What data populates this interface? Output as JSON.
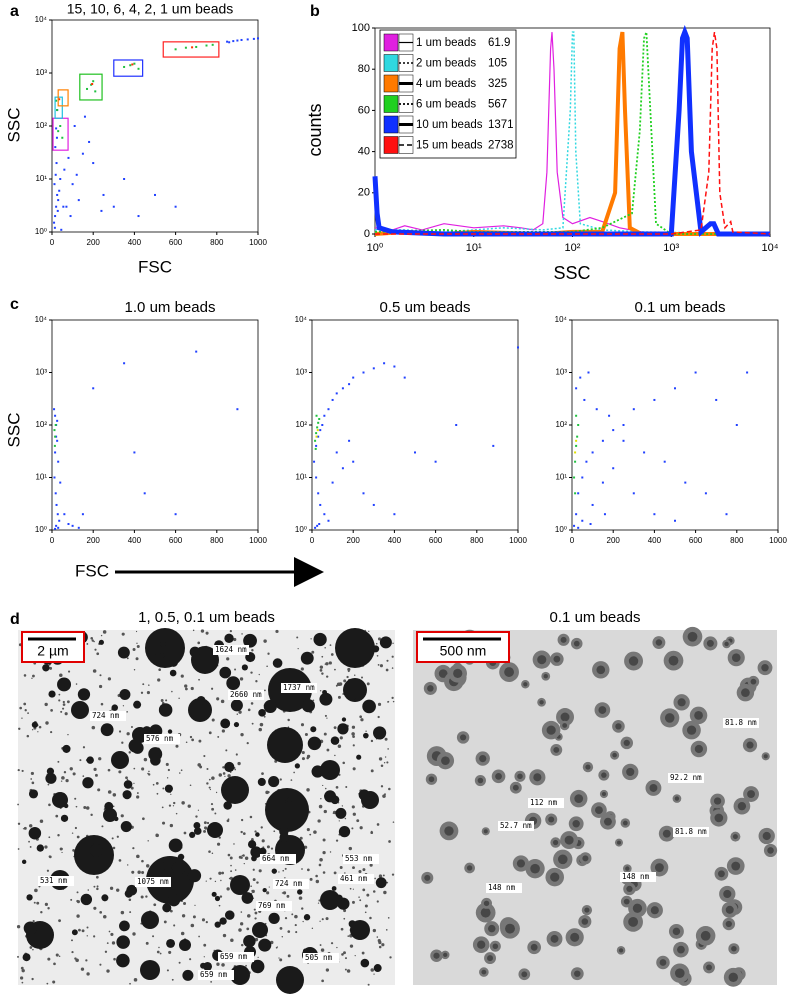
{
  "panel_labels": [
    "a",
    "b",
    "c",
    "d"
  ],
  "chart_data": [
    {
      "type": "scatter",
      "title": "15, 10, 6, 4, 2, 1 um beads",
      "x_label": "FSC",
      "y_label": "SSC",
      "xlim": [
        0,
        1000
      ],
      "xticks": [
        0,
        200,
        400,
        600,
        800,
        1000
      ],
      "ylim": [
        1,
        10000
      ],
      "yscale": "log",
      "yticks": [
        {
          "value": 1,
          "label": "10⁰"
        },
        {
          "value": 10,
          "label": "10¹"
        },
        {
          "value": 100,
          "label": "10²"
        },
        {
          "value": 1000,
          "label": "10³"
        },
        {
          "value": 10000,
          "label": "10⁴"
        }
      ],
      "series": [
        {
          "color": "#2040ff",
          "x": [
            10,
            15,
            20,
            25,
            12,
            18,
            30,
            22,
            14,
            28,
            35,
            40,
            16,
            24,
            60,
            80,
            100,
            120,
            150,
            200,
            250,
            300,
            350,
            180,
            130,
            90,
            70,
            110,
            160,
            240,
            420,
            500,
            600,
            850,
            880,
            900,
            920,
            950,
            980,
            1000,
            860,
            45,
            55,
            25,
            20
          ],
          "y": [
            1.5,
            2,
            3,
            5,
            8,
            12,
            4,
            20,
            1.2,
            2.5,
            6,
            10,
            40,
            60,
            15,
            25,
            8,
            12,
            30,
            20,
            5,
            3,
            10,
            50,
            4,
            2,
            3,
            100,
            150,
            2.5,
            2,
            5,
            3,
            3900,
            4000,
            4100,
            4200,
            4300,
            4400,
            4500,
            3800,
            1.1,
            3,
            200,
            90
          ]
        },
        {
          "color": "#20c040",
          "x": [
            30,
            40,
            50,
            170,
            190,
            200,
            210,
            350,
            380,
            400,
            420,
            600,
            650,
            700,
            750,
            780,
            20,
            25
          ],
          "y": [
            80,
            100,
            60,
            500,
            600,
            700,
            450,
            1300,
            1400,
            1500,
            1200,
            2800,
            3000,
            3100,
            3300,
            3400,
            300,
            200
          ]
        },
        {
          "color": "#ff3000",
          "x": [
            195,
            390,
            680,
            35
          ],
          "y": [
            620,
            1450,
            3050,
            320
          ]
        }
      ],
      "gates": [
        {
          "color": "#e020e0",
          "x": [
            5,
            78
          ],
          "y": [
            35,
            140
          ]
        },
        {
          "color": "#20c0e0",
          "x": [
            15,
            50
          ],
          "y": [
            140,
            350
          ]
        },
        {
          "color": "#ff8000",
          "x": [
            30,
            78
          ],
          "y": [
            240,
            480
          ]
        },
        {
          "color": "#20c020",
          "x": [
            135,
            243
          ],
          "y": [
            310,
            950
          ]
        },
        {
          "color": "#2030ff",
          "x": [
            300,
            440
          ],
          "y": [
            870,
            1760
          ]
        },
        {
          "color": "#ff2020",
          "x": [
            540,
            810
          ],
          "y": [
            2000,
            3870
          ]
        }
      ]
    },
    {
      "type": "line",
      "x_label": "SSC",
      "y_label": "counts",
      "xlim": [
        1,
        10000
      ],
      "xscale": "log",
      "xticks": [
        {
          "value": 1,
          "label": "10⁰"
        },
        {
          "value": 10,
          "label": "10¹"
        },
        {
          "value": 100,
          "label": "10²"
        },
        {
          "value": 1000,
          "label": "10³"
        },
        {
          "value": 10000,
          "label": "10⁴"
        }
      ],
      "ylim": [
        0,
        100
      ],
      "yticks": [
        0,
        20,
        40,
        60,
        80,
        100
      ],
      "legend": "upper-left",
      "series": [
        {
          "name": "1 um beads",
          "legend_value": 61.9,
          "color": "#e020e0",
          "linestyle": "solid",
          "linewidth": 1.2,
          "x": [
            1,
            1.5,
            2,
            3,
            5,
            10,
            20,
            30,
            40,
            50,
            55,
            60,
            62,
            65,
            70,
            80,
            100,
            150,
            200,
            300,
            500,
            1000,
            10000
          ],
          "y": [
            3,
            2,
            4,
            2,
            5,
            3,
            4,
            3,
            2,
            5,
            30,
            90,
            98,
            80,
            30,
            8,
            5,
            8,
            6,
            3,
            1,
            0,
            0
          ]
        },
        {
          "name": "2 um beads",
          "legend_value": 105,
          "color": "#30d8e0",
          "linestyle": "dotted",
          "linewidth": 1.5,
          "x": [
            1,
            2,
            5,
            10,
            20,
            50,
            80,
            95,
            100,
            103,
            108,
            120,
            200,
            500,
            10000
          ],
          "y": [
            2,
            2,
            1,
            2,
            3,
            2,
            3,
            60,
            98,
            98,
            40,
            5,
            2,
            1,
            0
          ]
        },
        {
          "name": "4 um beads",
          "legend_value": 325,
          "color": "#ff7a00",
          "linestyle": "solid",
          "linewidth": 4,
          "x": [
            1,
            2,
            5,
            10,
            50,
            100,
            200,
            270,
            300,
            320,
            340,
            380,
            500,
            10000
          ],
          "y": [
            0,
            1,
            0,
            1,
            0,
            1,
            1,
            20,
            90,
            98,
            60,
            3,
            0,
            0
          ]
        },
        {
          "name": "6 um beads",
          "legend_value": 567,
          "color": "#20d020",
          "linestyle": "dotted",
          "linewidth": 1.8,
          "x": [
            1,
            5,
            10,
            50,
            100,
            200,
            400,
            480,
            530,
            560,
            600,
            700,
            1000,
            10000
          ],
          "y": [
            1,
            2,
            1,
            1,
            1,
            3,
            10,
            50,
            95,
            98,
            70,
            5,
            0,
            0
          ]
        },
        {
          "name": "10 um beads",
          "legend_value": 1371,
          "color": "#1030ff",
          "linestyle": "solid",
          "linewidth": 5,
          "x": [
            1,
            1.05,
            1.1,
            1.5,
            5,
            10,
            100,
            1000,
            1200,
            1300,
            1370,
            1450,
            1600,
            2000,
            2500,
            2700,
            3000,
            10000
          ],
          "y": [
            28,
            10,
            3,
            1,
            0,
            0,
            0,
            0,
            60,
            95,
            98,
            95,
            40,
            1,
            5,
            5,
            0,
            0
          ]
        },
        {
          "name": "15 um beads",
          "legend_value": 2738,
          "color": "#ff1010",
          "linestyle": "dashed",
          "linewidth": 1.5,
          "x": [
            1,
            10,
            100,
            1000,
            2000,
            2400,
            2600,
            2740,
            2900,
            3100,
            3500,
            4000,
            4200,
            10000
          ],
          "y": [
            0,
            0,
            0,
            0,
            2,
            30,
            90,
            98,
            90,
            20,
            3,
            6,
            1,
            0
          ]
        }
      ]
    },
    {
      "type": "scatter",
      "title": "1.0 um beads",
      "x_label": "FSC",
      "y_label": "SSC",
      "xlim": [
        0,
        1000
      ],
      "xticks": [
        0,
        200,
        400,
        600,
        800,
        1000
      ],
      "ylim": [
        1,
        10000
      ],
      "yscale": "log",
      "yticks": [
        {
          "value": 1,
          "label": "10⁰"
        },
        {
          "value": 10,
          "label": "10¹"
        },
        {
          "value": 100,
          "label": "10²"
        },
        {
          "value": 1000,
          "label": "10³"
        },
        {
          "value": 10000,
          "label": "10⁴"
        }
      ],
      "series": [
        {
          "color": "#2040ff",
          "x": [
            10,
            15,
            20,
            25,
            30,
            12,
            18,
            22,
            28,
            35,
            15,
            20,
            25,
            40,
            60,
            100,
            150,
            200,
            350,
            400,
            600,
            700,
            900,
            450,
            130,
            80,
            20,
            30,
            15
          ],
          "y": [
            200,
            150,
            100,
            50,
            20,
            10,
            5,
            3,
            2,
            1.5,
            30,
            60,
            120,
            8,
            2,
            1.2,
            2,
            500,
            1500,
            30,
            2,
            2500,
            200,
            5,
            1.1,
            1.3,
            1.2,
            1.1,
            1.05
          ]
        },
        {
          "color": "#20c040",
          "x": [
            12,
            15,
            18,
            14
          ],
          "y": [
            80,
            60,
            100,
            40
          ]
        }
      ]
    },
    {
      "type": "scatter",
      "title": "0.5 um beads",
      "xlim": [
        0,
        1000
      ],
      "xticks": [
        0,
        200,
        400,
        600,
        800,
        1000
      ],
      "ylim": [
        1,
        10000
      ],
      "yscale": "log",
      "yticks": [
        {
          "value": 1,
          "label": "10⁰"
        },
        {
          "value": 10,
          "label": "10¹"
        },
        {
          "value": 100,
          "label": "10²"
        },
        {
          "value": 1000,
          "label": "10³"
        },
        {
          "value": 10000,
          "label": "10⁴"
        }
      ],
      "series": [
        {
          "color": "#2040ff",
          "x": [
            10,
            20,
            30,
            40,
            50,
            60,
            80,
            100,
            120,
            150,
            180,
            200,
            250,
            300,
            350,
            400,
            450,
            500,
            600,
            700,
            880,
            1000,
            20,
            30,
            40,
            60,
            80,
            100,
            150,
            200,
            250,
            300,
            400,
            15,
            25,
            35,
            120,
            180
          ],
          "y": [
            20,
            40,
            60,
            80,
            100,
            150,
            200,
            300,
            400,
            500,
            600,
            800,
            1000,
            1200,
            1500,
            1300,
            800,
            30,
            20,
            100,
            40,
            3000,
            10,
            5,
            3,
            2,
            1.5,
            8,
            15,
            20,
            5,
            3,
            2,
            1.1,
            1.2,
            1.3,
            30,
            50
          ]
        },
        {
          "color": "#20c040",
          "x": [
            15,
            20,
            25,
            30,
            35,
            18,
            22
          ],
          "y": [
            50,
            70,
            90,
            110,
            130,
            35,
            150
          ]
        },
        {
          "color": "#e0e000",
          "x": [
            22,
            28
          ],
          "y": [
            60,
            80
          ]
        }
      ]
    },
    {
      "type": "scatter",
      "title": "0.1 um beads",
      "xlim": [
        0,
        1000
      ],
      "xticks": [
        0,
        200,
        400,
        600,
        800,
        1000
      ],
      "ylim": [
        1,
        10000
      ],
      "yscale": "log",
      "yticks": [
        {
          "value": 1,
          "label": "10⁰"
        },
        {
          "value": 10,
          "label": "10¹"
        },
        {
          "value": 100,
          "label": "10²"
        },
        {
          "value": 1000,
          "label": "10³"
        },
        {
          "value": 10000,
          "label": "10⁴"
        }
      ],
      "series": [
        {
          "color": "#2040ff",
          "x": [
            10,
            20,
            30,
            50,
            70,
            100,
            150,
            200,
            250,
            300,
            400,
            500,
            600,
            700,
            800,
            50,
            100,
            150,
            200,
            300,
            400,
            500,
            20,
            40,
            60,
            80,
            120,
            180,
            250,
            350,
            450,
            550,
            650,
            750,
            850,
            30,
            90,
            160
          ],
          "y": [
            1.2,
            2,
            5,
            10,
            20,
            30,
            50,
            80,
            100,
            200,
            300,
            500,
            1000,
            300,
            100,
            1.5,
            3,
            8,
            15,
            5,
            2,
            1.5,
            500,
            800,
            300,
            1000,
            200,
            150,
            50,
            30,
            20,
            8,
            5,
            2,
            1000,
            1.1,
            1.3,
            2
          ]
        },
        {
          "color": "#20c040",
          "x": [
            10,
            15,
            20,
            25,
            30,
            15,
            20
          ],
          "y": [
            10,
            20,
            40,
            60,
            100,
            5,
            150
          ]
        },
        {
          "color": "#e0e000",
          "x": [
            15,
            20
          ],
          "y": [
            30,
            50
          ]
        }
      ]
    }
  ],
  "images": [
    {
      "title": "1, 0.5, 0.1 um beads",
      "scale_bar": "2 µm",
      "measurements": [
        "1624 nm",
        "2660 nm",
        "1737 nm",
        "724 nm",
        "576 nm",
        "664 nm",
        "553 nm",
        "531 nm",
        "724 nm",
        "461 nm",
        "1075 nm",
        "769 nm",
        "659 nm",
        "505 nm",
        "659 nm"
      ]
    },
    {
      "title": "0.1 um beads",
      "scale_bar": "500 nm",
      "measurements": [
        "81.8 nm",
        "92.2 nm",
        "112 nm",
        "52.7 nm",
        "81.8 nm",
        "148 nm",
        "148 nm"
      ]
    }
  ]
}
